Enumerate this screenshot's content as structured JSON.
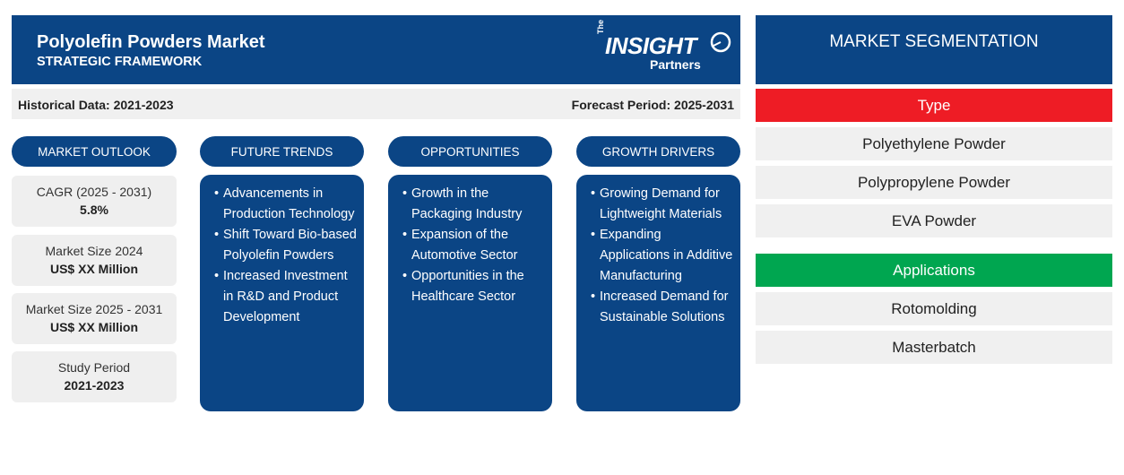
{
  "header": {
    "title": "Polyolefin Powders Market",
    "subtitle": "STRATEGIC FRAMEWORK",
    "logo": {
      "the": "The",
      "main": "INSIGHT",
      "partners": "Partners"
    }
  },
  "period": {
    "historical": "Historical Data: 2021-2023",
    "forecast": "Forecast Period: 2025-2031"
  },
  "columns": {
    "outlook": "MARKET OUTLOOK",
    "trends": "FUTURE TRENDS",
    "opportunities": "OPPORTUNITIES",
    "drivers": "GROWTH DRIVERS"
  },
  "outlook": [
    {
      "label": "CAGR (2025 - 2031)",
      "value": "5.8%"
    },
    {
      "label": "Market Size 2024",
      "value": "US$ XX Million"
    },
    {
      "label": "Market Size 2025 - 2031",
      "value": "US$ XX Million"
    },
    {
      "label": "Study Period",
      "value": "2021-2023"
    }
  ],
  "trends": [
    "Advancements in Production Technology",
    "Shift Toward Bio-based Polyolefin Powders",
    "Increased Investment in R&D and Product Development"
  ],
  "opportunities": [
    "Growth in the Packaging Industry",
    "Expansion of the Automotive Sector",
    "Opportunities in the Healthcare Sector"
  ],
  "drivers": [
    "Growing Demand for Lightweight Materials",
    "Expanding Applications in Additive Manufacturing",
    "Increased Demand for Sustainable Solutions"
  ],
  "segmentation": {
    "title": "MARKET SEGMENTATION",
    "type": {
      "label": "Type",
      "color": "#ee1c25",
      "items": [
        "Polyethylene Powder",
        "Polypropylene Powder",
        "EVA Powder"
      ]
    },
    "applications": {
      "label": "Applications",
      "color": "#00a650",
      "items": [
        "Rotomolding",
        "Masterbatch"
      ]
    }
  },
  "colors": {
    "primary": "#0b4585",
    "light_gray": "#f0f0f0"
  }
}
